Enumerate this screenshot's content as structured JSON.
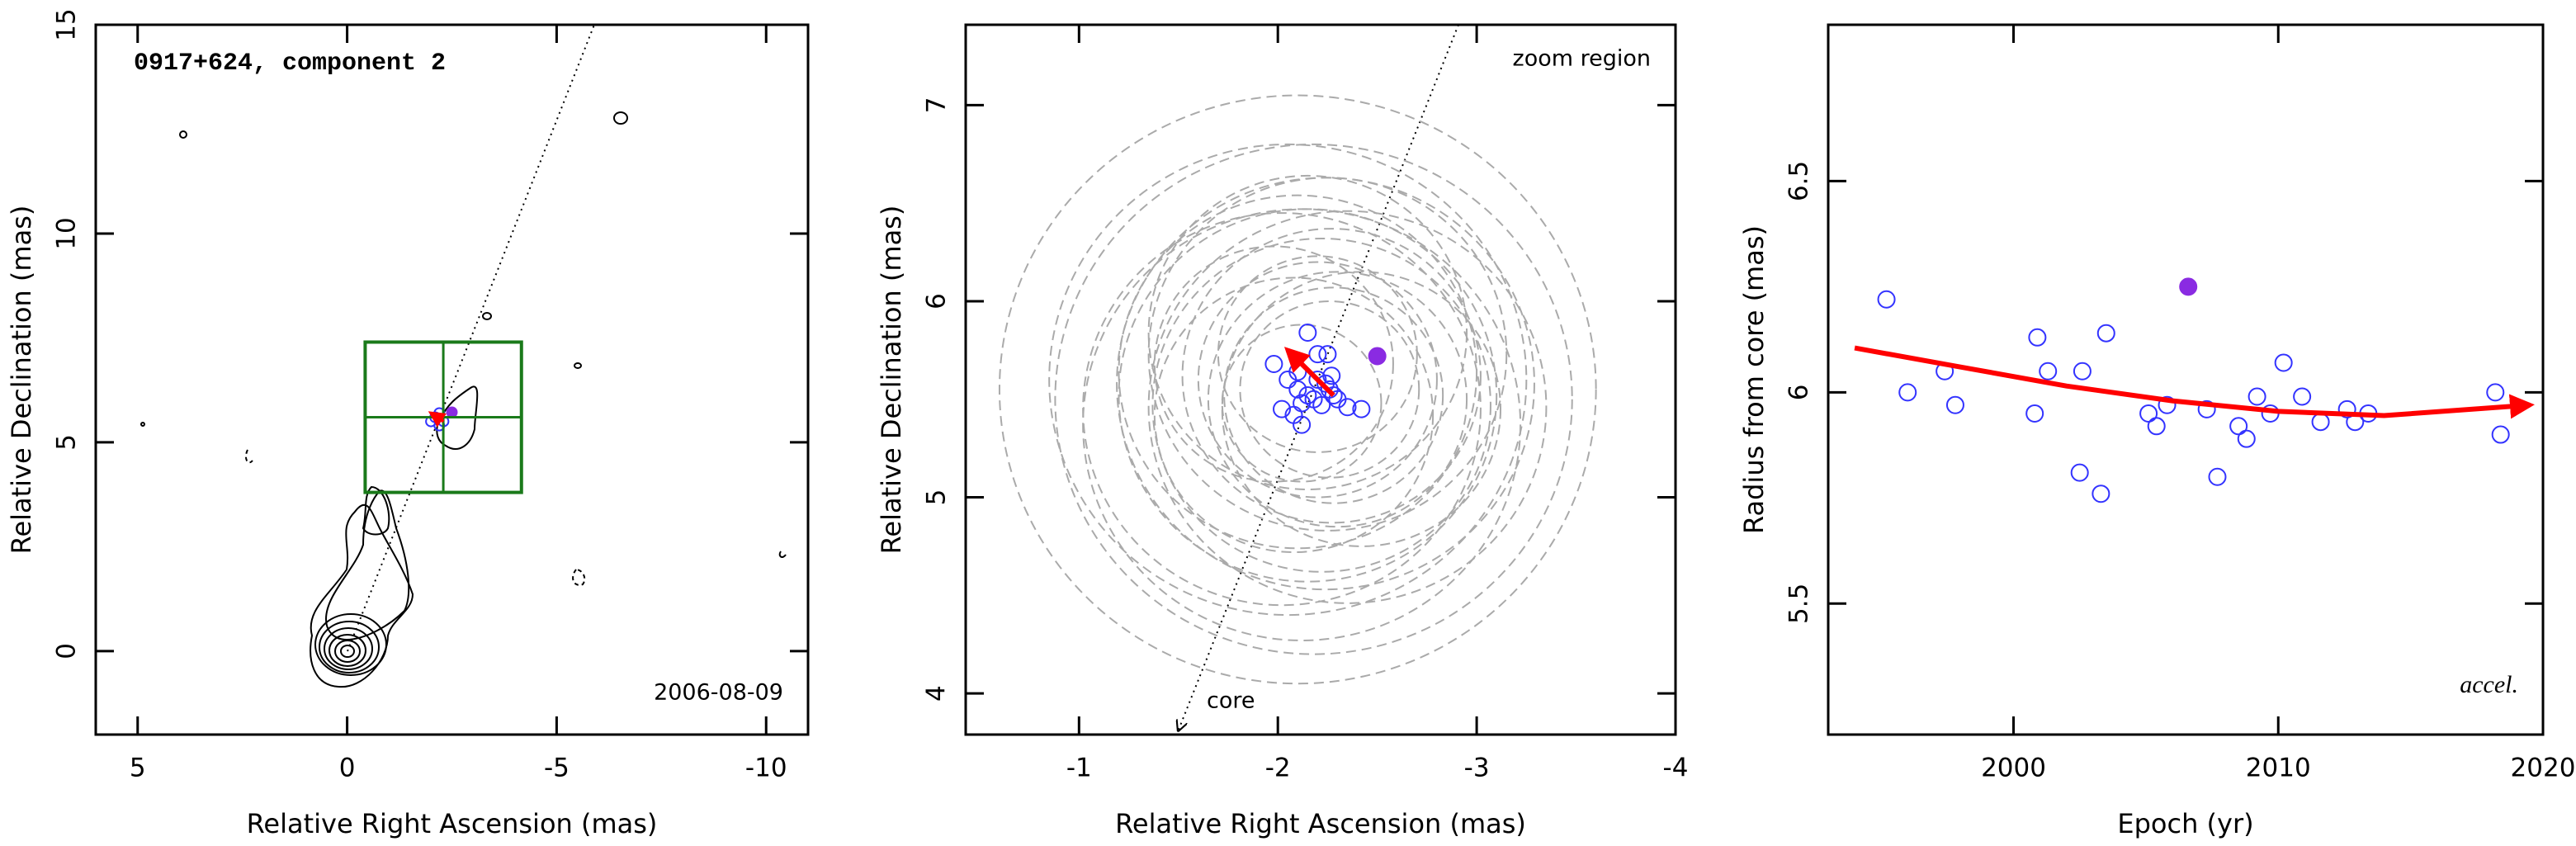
{
  "chart_data": [
    {
      "type": "scatter",
      "title": "0917+624, component 2",
      "annotation": "2006-08-09",
      "xlabel": "Relative Right Ascension (mas)",
      "ylabel": "Relative Declination (mas)",
      "xlim": [
        6,
        -11
      ],
      "ylim": [
        -2,
        15
      ],
      "xticks": [
        5,
        0,
        -5,
        -10
      ],
      "yticks": [
        0,
        5,
        10,
        15
      ],
      "series": [
        {
          "color": "#3333ff",
          "x": [
            -2.1,
            -2.2,
            -2.3,
            -2.0,
            -2.2
          ],
          "values": [
            5.6,
            5.4,
            5.5,
            5.5,
            5.7
          ]
        },
        {
          "color": "#8a2be2",
          "filled": true,
          "x": [
            -2.5
          ],
          "values": [
            5.72
          ]
        }
      ],
      "arrow": {
        "color": "#ff0000",
        "x": [
          -2.3,
          -2.0
        ],
        "y": [
          5.5,
          5.7
        ]
      },
      "zoom_box": {
        "color": "#1a7a1a",
        "xlim": [
          -0.43,
          -4.16
        ],
        "ylim": [
          3.8,
          7.4
        ]
      }
    },
    {
      "type": "scatter",
      "annotations": [
        "zoom region",
        "core"
      ],
      "xlabel": "Relative Right Ascension (mas)",
      "ylabel": "Relative Declination (mas)",
      "xlim": [
        -0.43,
        -4
      ],
      "ylim": [
        3.79,
        7.41
      ],
      "xticks": [
        -1,
        -2,
        -3,
        -4
      ],
      "yticks": [
        4,
        5,
        6,
        7
      ],
      "series": [
        {
          "color": "#3333ff",
          "size_color": "#aaaaaa",
          "x": [
            -1.98,
            -2.02,
            -2.05,
            -2.1,
            -2.1,
            -2.15,
            -2.08,
            -2.12,
            -2.2,
            -2.25,
            -2.2,
            -2.18,
            -2.27,
            -2.22,
            -2.3,
            -2.35,
            -2.42,
            -2.28,
            -2.15,
            -2.24,
            -2.12,
            -2.26
          ],
          "values": [
            5.68,
            5.45,
            5.6,
            5.64,
            5.55,
            5.84,
            5.42,
            5.37,
            5.73,
            5.73,
            5.6,
            5.5,
            5.62,
            5.47,
            5.5,
            5.46,
            5.45,
            5.52,
            5.52,
            5.58,
            5.48,
            5.55
          ],
          "sizes": [
            0.6,
            1.0,
            1.2,
            0.9,
            1.5,
            0.8,
            0.7,
            1.1,
            0.5,
            0.9,
            0.6,
            1.3,
            0.75,
            0.85,
            0.65,
            1.0,
            0.7,
            0.55,
            0.95,
            1.05,
            0.4,
            0.45
          ]
        },
        {
          "color": "#8a2be2",
          "filled": true,
          "x": [
            -2.5
          ],
          "values": [
            5.72
          ]
        }
      ],
      "arrow": {
        "color": "#ff0000",
        "x": [
          -2.28,
          -2.05
        ],
        "y": [
          5.52,
          5.75
        ]
      }
    },
    {
      "type": "scatter",
      "annotation": "accel.",
      "xlabel": "Epoch (yr)",
      "ylabel": "Radius from core (mas)",
      "xlim": [
        1993,
        2020
      ],
      "ylim": [
        5.19,
        6.87
      ],
      "xticks": [
        2000,
        2010,
        2020
      ],
      "yticks": [
        5.5,
        6,
        6.5
      ],
      "series": [
        {
          "color": "#3333ff",
          "x": [
            1995.2,
            1996,
            1997.4,
            1997.8,
            2000.9,
            2000.8,
            2001.3,
            2002.6,
            2002.5,
            2003.3,
            2003.5,
            2005.1,
            2005.4,
            2005.8,
            2007.3,
            2007.7,
            2008.5,
            2008.8,
            2009.2,
            2009.7,
            2010.2,
            2010.9,
            2011.6,
            2012.6,
            2012.9,
            2013.4,
            2018.2,
            2018.4
          ],
          "values": [
            6.22,
            6.0,
            6.05,
            5.97,
            6.13,
            5.95,
            6.05,
            6.05,
            5.81,
            5.76,
            6.14,
            5.95,
            5.92,
            5.97,
            5.96,
            5.8,
            5.92,
            5.89,
            5.99,
            5.95,
            6.07,
            5.99,
            5.93,
            5.96,
            5.93,
            5.95,
            6.0,
            5.9
          ]
        },
        {
          "color": "#8a2be2",
          "filled": true,
          "x": [
            2006.6
          ],
          "values": [
            6.25
          ]
        }
      ],
      "fit": {
        "color": "#ff0000",
        "x": [
          1994,
          1998,
          2002,
          2006,
          2010,
          2014,
          2019.5
        ],
        "values": [
          6.105,
          6.06,
          6.015,
          5.98,
          5.955,
          5.945,
          5.97
        ]
      }
    }
  ]
}
